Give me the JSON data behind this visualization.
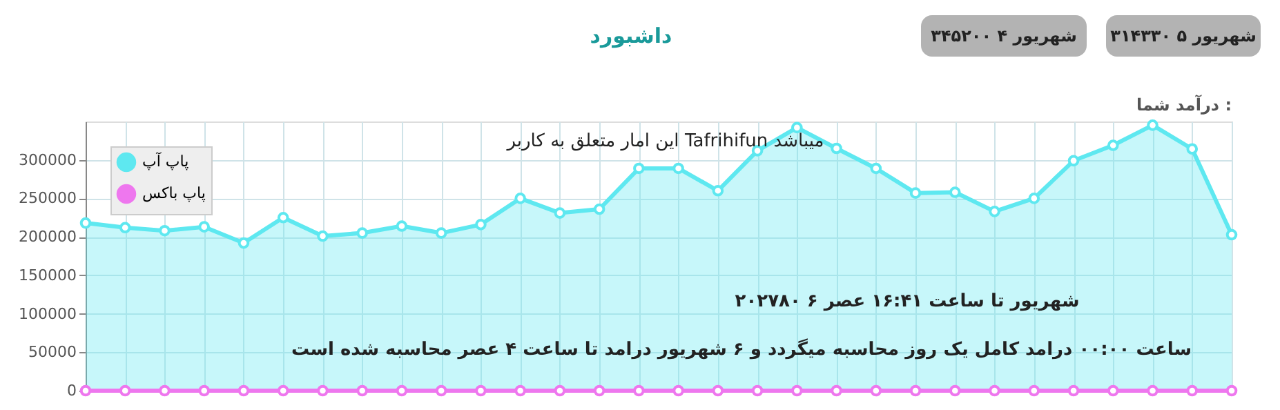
{
  "chart_data": {
    "type": "area",
    "title": "داشبورد",
    "subtitle": "درآمد شما :",
    "categories": [
      null,
      null,
      null,
      null,
      null,
      null,
      null,
      null,
      null,
      null,
      null,
      null,
      null,
      null,
      null,
      null,
      null,
      null,
      null,
      null,
      null,
      null,
      null,
      null,
      null,
      null,
      null,
      null,
      null,
      null
    ],
    "series": [
      {
        "name": "پاپ آپ",
        "color": "#5ee8f0",
        "values": [
          218000,
          212000,
          208000,
          213000,
          192000,
          225000,
          201000,
          205000,
          214000,
          205000,
          216000,
          250000,
          231000,
          236000,
          289000,
          289000,
          260000,
          312000,
          342000,
          315000,
          289000,
          257000,
          258000,
          233000,
          250000,
          299000,
          319000,
          345200,
          314330,
          202780
        ]
      },
      {
        "name": "پاپ باکس",
        "color": "#ee77ee",
        "type": "line",
        "values": [
          0,
          0,
          0,
          0,
          0,
          0,
          0,
          0,
          0,
          0,
          0,
          0,
          0,
          0,
          0,
          0,
          0,
          0,
          0,
          0,
          0,
          0,
          0,
          0,
          0,
          0,
          0,
          0,
          0,
          0
        ]
      }
    ],
    "ylim": [
      0,
      350000
    ],
    "yticks": [
      0,
      50000,
      100000,
      150000,
      200000,
      250000,
      300000
    ],
    "grid": true,
    "legend": "top left",
    "marker": "circle",
    "tick_labels": "y",
    "annotations": [
      "۳۴۵۲۰۰ ۴ شهریور",
      "۳۱۴۳۳۰ ۵ شهریور",
      "۲۰۲۷۸۰ ۶ شهریور تا ساعت ۱۶:۴۱ عصر",
      "این امار متعلق به کاربر Tafrihifun میباشد",
      "ساعت ۰۰:۰۰ درامد کامل یک روز محاسبه میگردد و ۶ شهریور درامد تا ساعت ۴ عصر محاسبه شده است"
    ]
  }
}
